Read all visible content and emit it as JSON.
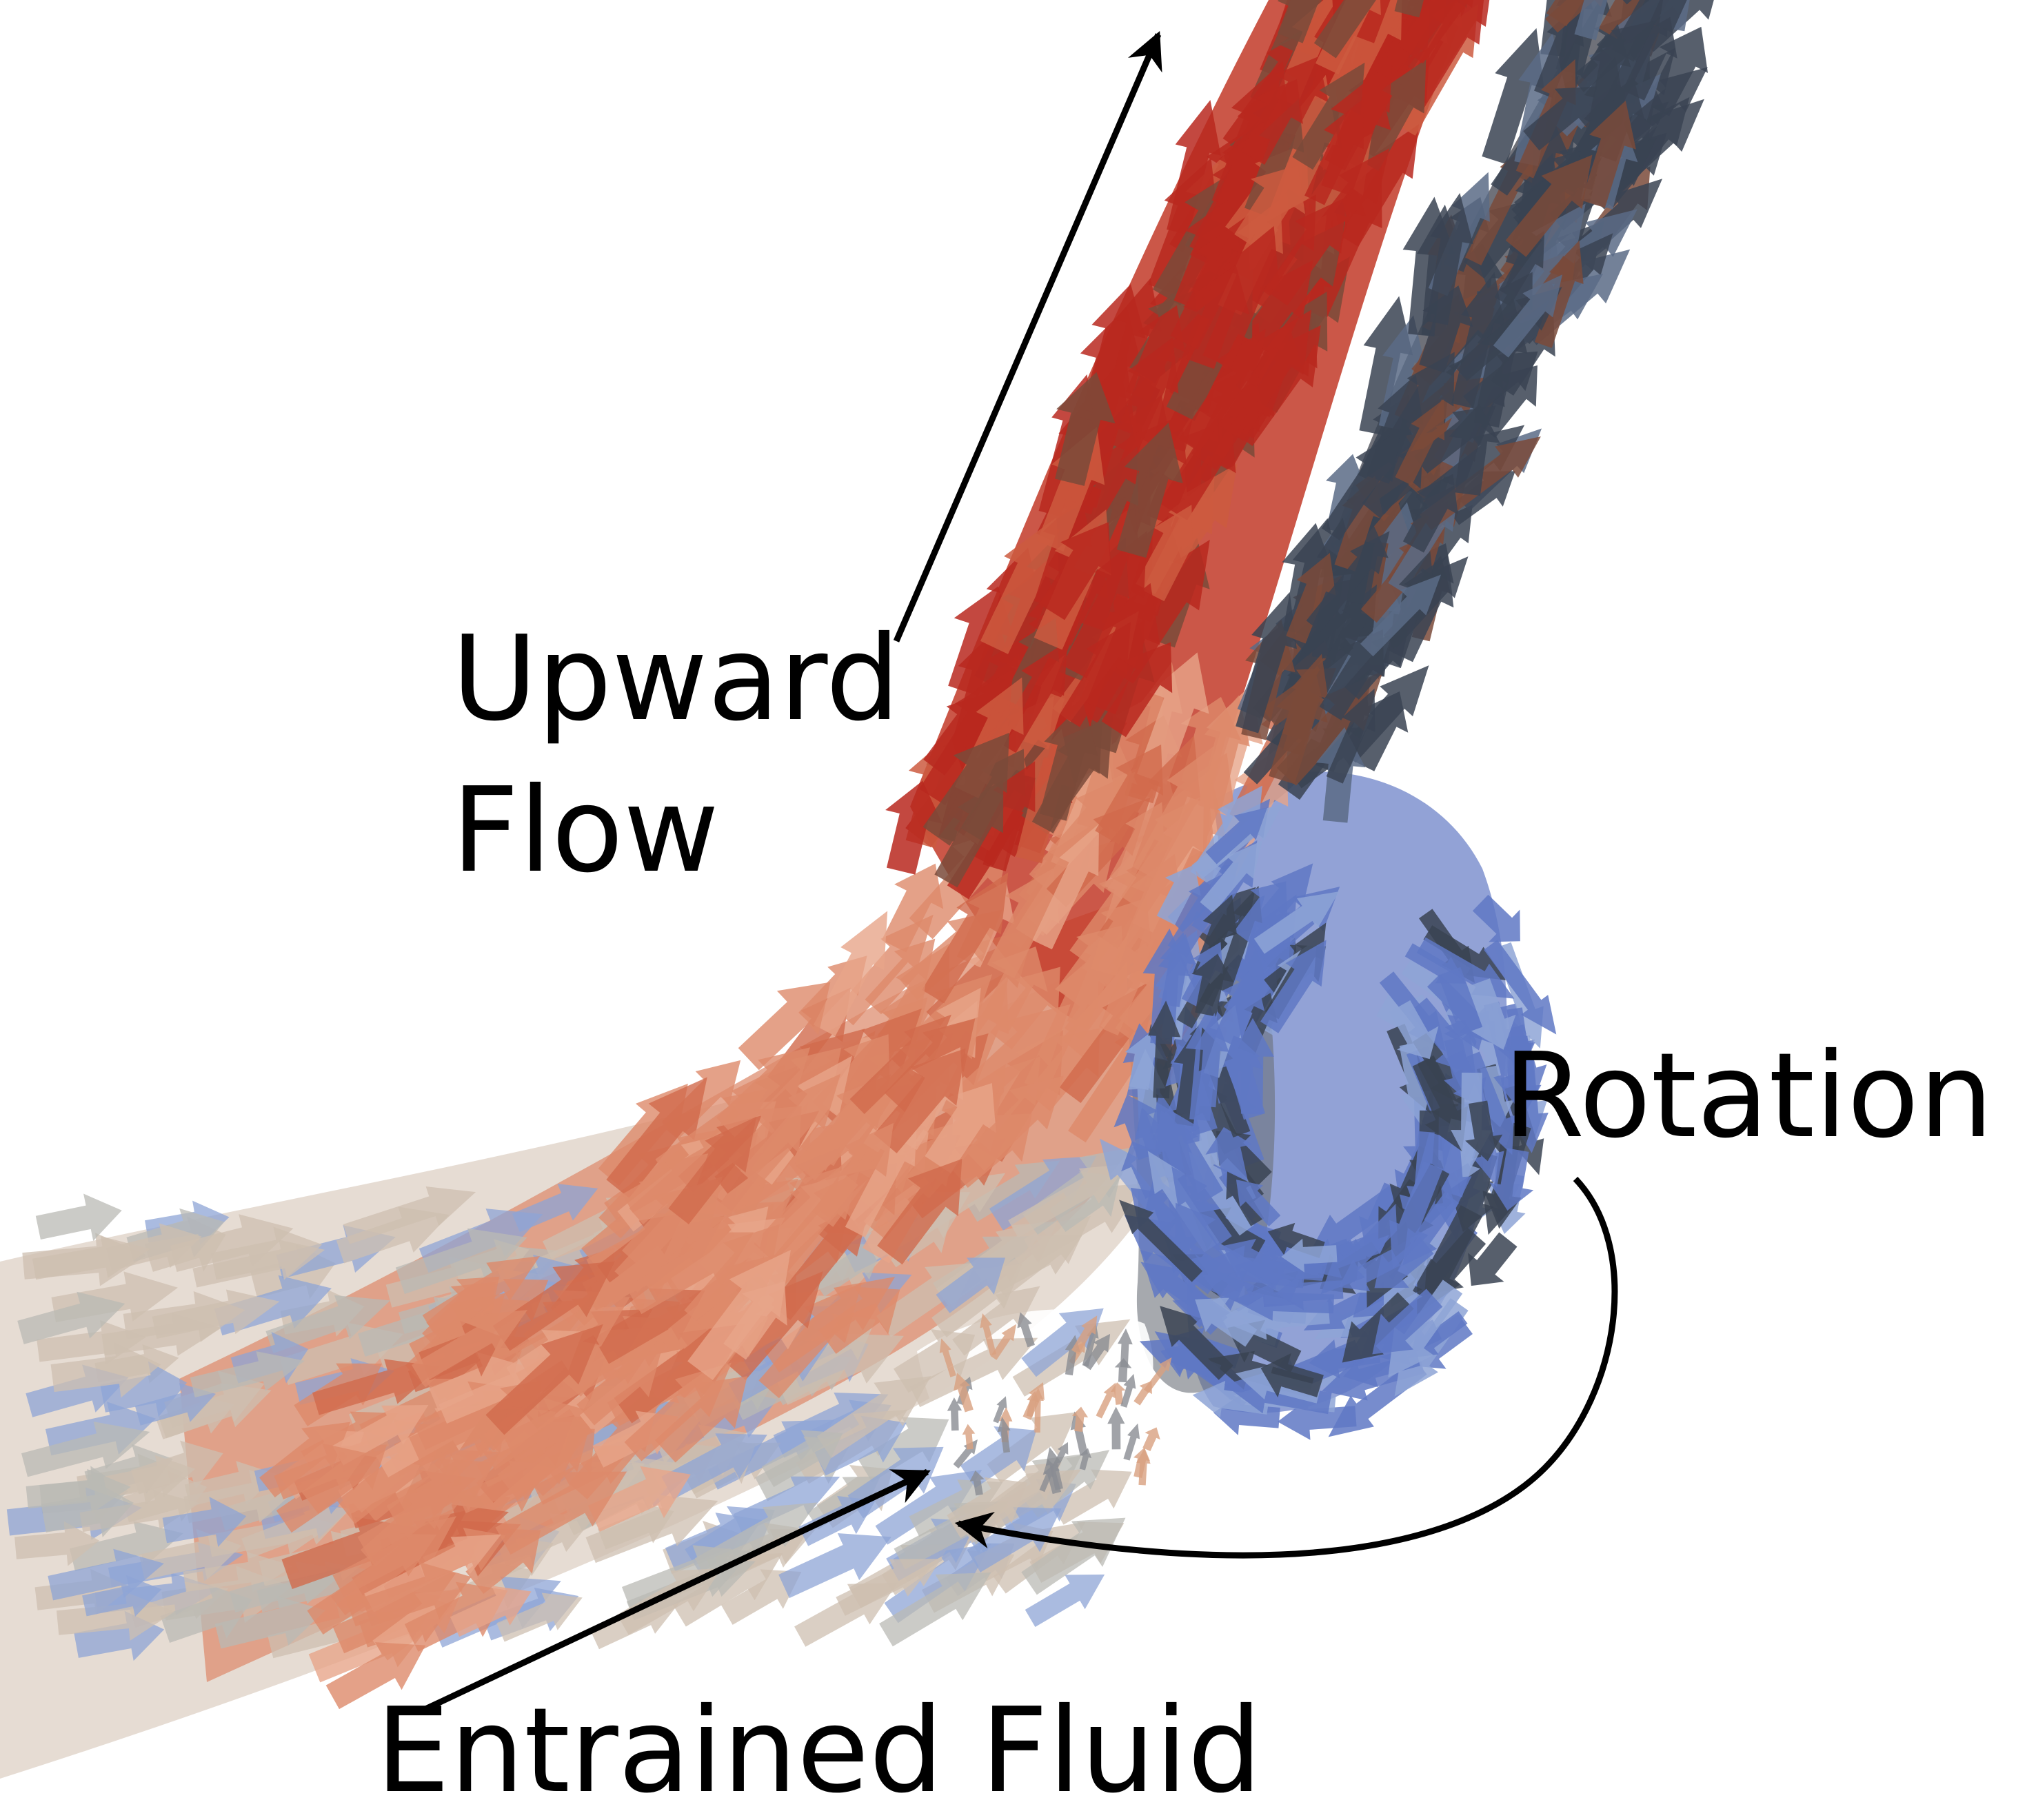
{
  "figure": {
    "description_labels": {
      "upward_line1": "Upward",
      "upward_line2": "Flow",
      "rotation": "Rotation",
      "entrained": "Entrained Fluid"
    },
    "colors": {
      "background": "#ffffff",
      "annotation": "#000000",
      "red_core": "#b8281e",
      "salmon": "#dd8a6a",
      "tan": "#cdbfb0",
      "grey": "#b9b9b4",
      "dark_slate": "#3a4352",
      "brown": "#7a4a3a",
      "blue": "#5f78c4",
      "light_blue": "#8ea4d6"
    }
  }
}
